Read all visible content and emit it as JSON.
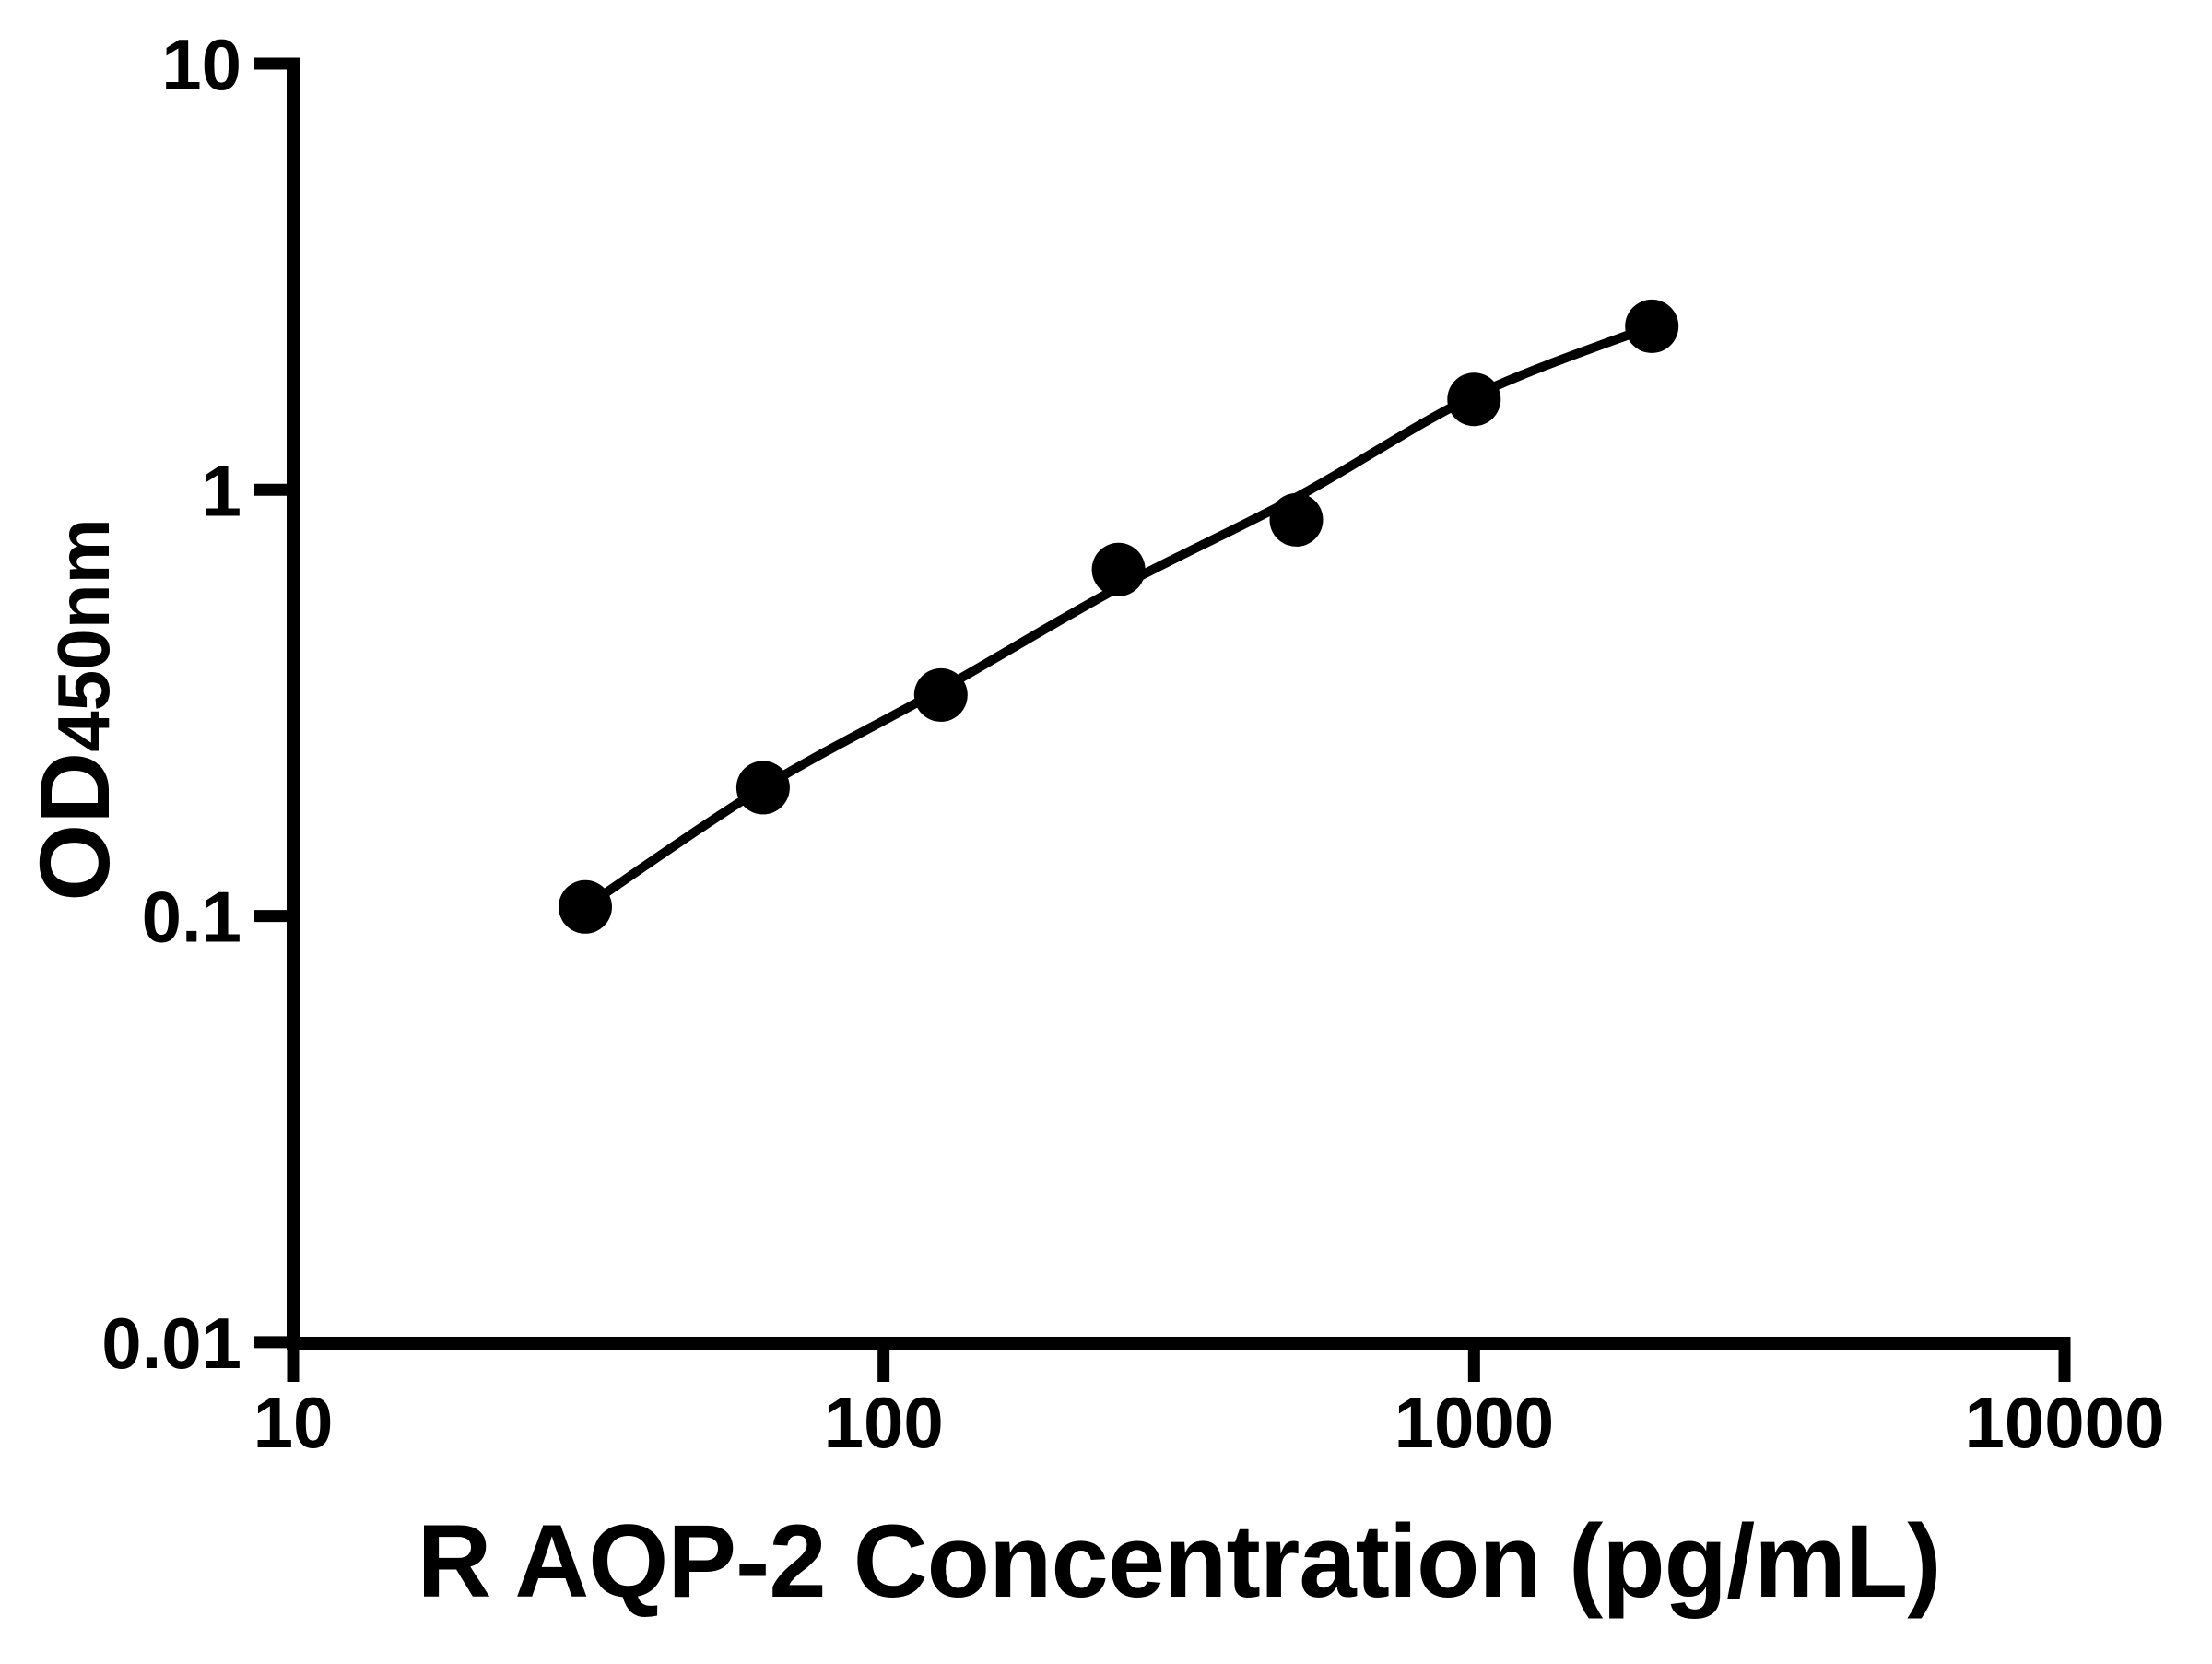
{
  "figure": {
    "background_color": "#ffffff",
    "ink_color": "#000000"
  },
  "chart_data": {
    "type": "scatter",
    "title": "",
    "grid": false,
    "legend": null,
    "x_axis": {
      "label": "R AQP-2 Concentration (pg/mL)",
      "scale": "log",
      "range": [
        10,
        10000
      ],
      "ticks": [
        10,
        100,
        1000,
        10000
      ],
      "tick_labels": [
        "10",
        "100",
        "1000",
        "10000"
      ]
    },
    "y_axis": {
      "label": "OD450nm",
      "label_main": "OD",
      "label_sub": "450nm",
      "scale": "log",
      "range": [
        0.01,
        10
      ],
      "ticks": [
        10,
        1,
        0.1,
        0.01
      ],
      "tick_labels": [
        "10",
        "1",
        "0.1",
        "0.01"
      ]
    },
    "series": [
      {
        "name": "standard-points",
        "marker": "filled-circle",
        "color": "#000000",
        "points": [
          {
            "x": 31.25,
            "y": 0.105
          },
          {
            "x": 62.5,
            "y": 0.2
          },
          {
            "x": 125,
            "y": 0.33
          },
          {
            "x": 250,
            "y": 0.65
          },
          {
            "x": 500,
            "y": 0.85
          },
          {
            "x": 1000,
            "y": 1.63
          },
          {
            "x": 2000,
            "y": 2.42
          }
        ]
      }
    ],
    "fit_curve": {
      "name": "fit-line",
      "color": "#000000",
      "points": [
        {
          "x": 31.25,
          "y": 0.105
        },
        {
          "x": 62.5,
          "y": 0.2
        },
        {
          "x": 125,
          "y": 0.34
        },
        {
          "x": 250,
          "y": 0.59
        },
        {
          "x": 500,
          "y": 0.96
        },
        {
          "x": 1000,
          "y": 1.66
        },
        {
          "x": 2000,
          "y": 2.42
        }
      ]
    }
  }
}
